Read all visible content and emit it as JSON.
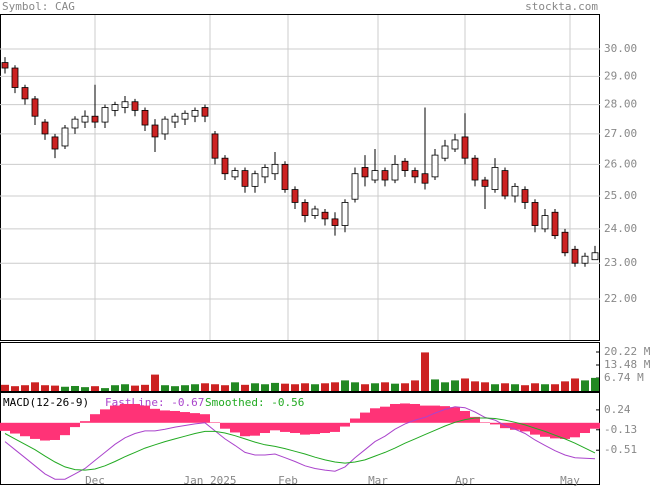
{
  "chart_data": [
    {
      "type": "candlestick",
      "title": "Symbol: CAG",
      "source": "stockta.com",
      "xlim": [
        -0.5,
        59.5
      ],
      "xticks": [
        {
          "value": 9,
          "label": "Dec"
        },
        {
          "value": 20.5,
          "label": "Jan 2025"
        },
        {
          "value": 28.3,
          "label": "Feb"
        },
        {
          "value": 37.3,
          "label": "Mar"
        },
        {
          "value": 46,
          "label": "Apr"
        },
        {
          "value": 56.5,
          "label": "May"
        }
      ],
      "ylim": [
        20.91,
        31.88
      ],
      "log": true,
      "grid": true,
      "yticks": [
        {
          "value": 30,
          "label": "30.00"
        },
        {
          "value": 29,
          "label": "29.00"
        },
        {
          "value": 28,
          "label": "28.00"
        },
        {
          "value": 27,
          "label": "27.00"
        },
        {
          "value": 26,
          "label": "26.00"
        },
        {
          "value": 25,
          "label": "25.00"
        },
        {
          "value": 24,
          "label": "24.00"
        },
        {
          "value": 23,
          "label": "23.00"
        },
        {
          "value": 22,
          "label": "22.00"
        }
      ],
      "up_color": "#ffffff",
      "down_color": "#cc2222",
      "open": [
        29.5,
        29.3,
        28.6,
        28.2,
        27.4,
        26.9,
        26.6,
        27.2,
        27.4,
        27.6,
        27.4,
        27.8,
        27.9,
        28.1,
        27.8,
        27.3,
        27.0,
        27.4,
        27.5,
        27.6,
        27.9,
        27.0,
        26.2,
        25.6,
        25.8,
        25.3,
        25.6,
        25.7,
        26.0,
        25.2,
        24.8,
        24.4,
        24.5,
        24.3,
        24.1,
        24.9,
        25.9,
        25.5,
        25.8,
        25.5,
        26.1,
        25.8,
        25.7,
        25.6,
        26.2,
        26.5,
        26.9,
        26.2,
        25.5,
        25.2,
        25.8,
        25.0,
        25.2,
        24.8,
        24.0,
        24.5,
        23.9,
        23.4,
        23.0,
        23.1
      ],
      "high": [
        29.7,
        29.4,
        28.7,
        28.3,
        27.5,
        27.0,
        27.3,
        27.6,
        27.8,
        28.7,
        28.0,
        28.1,
        28.3,
        28.2,
        27.9,
        27.5,
        27.6,
        27.7,
        27.8,
        27.9,
        28.0,
        27.1,
        26.3,
        25.9,
        25.9,
        25.8,
        26.0,
        26.4,
        26.1,
        25.3,
        24.9,
        24.7,
        24.6,
        24.5,
        24.9,
        25.9,
        26.3,
        26.5,
        25.9,
        26.3,
        26.2,
        25.9,
        27.9,
        26.5,
        26.8,
        27.0,
        27.7,
        26.3,
        25.6,
        26.2,
        25.9,
        25.4,
        25.3,
        24.9,
        24.6,
        24.6,
        24.0,
        23.5,
        23.3,
        23.5
      ],
      "low": [
        29.1,
        28.4,
        28.0,
        27.3,
        26.8,
        26.2,
        26.5,
        27.0,
        27.2,
        27.2,
        27.2,
        27.6,
        27.7,
        27.6,
        27.1,
        26.4,
        26.8,
        27.2,
        27.3,
        27.4,
        27.4,
        26.0,
        25.5,
        25.5,
        25.1,
        25.1,
        25.4,
        25.5,
        25.1,
        24.6,
        24.2,
        24.3,
        24.1,
        23.8,
        23.9,
        24.8,
        25.3,
        25.4,
        25.3,
        25.4,
        25.6,
        25.4,
        25.2,
        25.5,
        26.1,
        26.4,
        26.0,
        25.3,
        24.6,
        25.1,
        24.9,
        24.8,
        24.6,
        23.9,
        23.9,
        23.7,
        23.2,
        22.9,
        22.9,
        23.1
      ],
      "close": [
        29.3,
        28.6,
        28.2,
        27.6,
        27.0,
        26.5,
        27.2,
        27.5,
        27.6,
        27.4,
        27.9,
        28.0,
        28.1,
        27.8,
        27.3,
        26.9,
        27.5,
        27.6,
        27.7,
        27.8,
        27.6,
        26.2,
        25.7,
        25.8,
        25.3,
        25.7,
        25.9,
        26.0,
        25.2,
        24.8,
        24.4,
        24.6,
        24.3,
        24.1,
        24.8,
        25.7,
        25.6,
        25.8,
        25.5,
        26.0,
        25.8,
        25.6,
        25.4,
        26.3,
        26.6,
        26.8,
        26.2,
        25.5,
        25.3,
        25.9,
        25.0,
        25.3,
        24.8,
        24.1,
        24.4,
        23.8,
        23.3,
        23.0,
        23.2,
        23.3
      ]
    },
    {
      "type": "bar",
      "up_color": "#228822",
      "down_color": "#cc2222",
      "ylim": [
        0,
        25.4
      ],
      "yticks": [
        {
          "value": 20.22,
          "label": "20.22 M"
        },
        {
          "value": 13.48,
          "label": "13.48 M"
        },
        {
          "value": 6.74,
          "label": "6.74 M"
        }
      ],
      "values": [
        3.2,
        2.5,
        3.0,
        4.5,
        3.0,
        2.8,
        2.2,
        2.6,
        2.0,
        2.5,
        1.5,
        3.0,
        3.5,
        2.8,
        3.2,
        8.5,
        3.0,
        2.5,
        3.0,
        3.5,
        4.0,
        3.5,
        3.0,
        4.5,
        3.2,
        4.0,
        3.5,
        4.2,
        3.8,
        3.5,
        4.0,
        3.5,
        4.0,
        4.5,
        5.5,
        4.5,
        3.5,
        4.0,
        4.5,
        3.8,
        4.0,
        5.5,
        20.0,
        6.0,
        4.5,
        5.5,
        6.5,
        5.0,
        4.5,
        3.5,
        4.0,
        3.5,
        3.0,
        4.0,
        3.5,
        3.5,
        5.0,
        6.5,
        5.5,
        6.8
      ]
    },
    {
      "type": "line",
      "title": "MACD(12-26-9)",
      "ylim": [
        -1.176,
        0.573
      ],
      "yticks": [
        0.24,
        -0.13,
        -0.51
      ],
      "histogram": {
        "color": "#ff3377",
        "values": [
          -0.15,
          -0.2,
          -0.25,
          -0.3,
          -0.33,
          -0.32,
          -0.23,
          -0.08,
          0.03,
          0.16,
          0.25,
          0.32,
          0.35,
          0.35,
          0.32,
          0.26,
          0.23,
          0.22,
          0.2,
          0.18,
          0.16,
          0.01,
          -0.11,
          -0.18,
          -0.25,
          -0.24,
          -0.19,
          -0.14,
          -0.17,
          -0.19,
          -0.22,
          -0.21,
          -0.19,
          -0.17,
          -0.07,
          0.08,
          0.19,
          0.27,
          0.3,
          0.35,
          0.36,
          0.35,
          0.32,
          0.32,
          0.31,
          0.29,
          0.22,
          0.11,
          0.01,
          -0.03,
          -0.1,
          -0.13,
          -0.16,
          -0.22,
          -0.26,
          -0.29,
          -0.3,
          -0.27,
          -0.19,
          -0.11
        ]
      },
      "series": [
        {
          "name": "FastLine: -0.67",
          "color": "#aa44cc",
          "values": [
            -0.35,
            -0.5,
            -0.65,
            -0.8,
            -0.95,
            -1.05,
            -1.05,
            -0.95,
            -0.85,
            -0.7,
            -0.55,
            -0.4,
            -0.28,
            -0.2,
            -0.15,
            -0.15,
            -0.12,
            -0.08,
            -0.05,
            -0.02,
            0.0,
            -0.15,
            -0.3,
            -0.42,
            -0.55,
            -0.6,
            -0.6,
            -0.58,
            -0.65,
            -0.72,
            -0.8,
            -0.85,
            -0.88,
            -0.9,
            -0.82,
            -0.65,
            -0.5,
            -0.35,
            -0.25,
            -0.12,
            -0.02,
            0.05,
            0.1,
            0.18,
            0.25,
            0.3,
            0.28,
            0.2,
            0.1,
            0.05,
            -0.05,
            -0.12,
            -0.2,
            -0.32,
            -0.42,
            -0.52,
            -0.6,
            -0.65,
            -0.66,
            -0.67
          ]
        },
        {
          "name": "Smoothed: -0.56",
          "color": "#22aa22",
          "values": [
            -0.2,
            -0.3,
            -0.4,
            -0.5,
            -0.62,
            -0.73,
            -0.82,
            -0.87,
            -0.88,
            -0.86,
            -0.8,
            -0.72,
            -0.63,
            -0.55,
            -0.47,
            -0.41,
            -0.35,
            -0.3,
            -0.25,
            -0.2,
            -0.16,
            -0.16,
            -0.19,
            -0.24,
            -0.3,
            -0.36,
            -0.41,
            -0.44,
            -0.48,
            -0.53,
            -0.58,
            -0.64,
            -0.69,
            -0.73,
            -0.75,
            -0.73,
            -0.69,
            -0.62,
            -0.55,
            -0.47,
            -0.38,
            -0.3,
            -0.22,
            -0.14,
            -0.06,
            0.01,
            0.06,
            0.09,
            0.09,
            0.08,
            0.05,
            0.01,
            -0.04,
            -0.1,
            -0.16,
            -0.23,
            -0.3,
            -0.38,
            -0.47,
            -0.56
          ]
        }
      ]
    }
  ]
}
